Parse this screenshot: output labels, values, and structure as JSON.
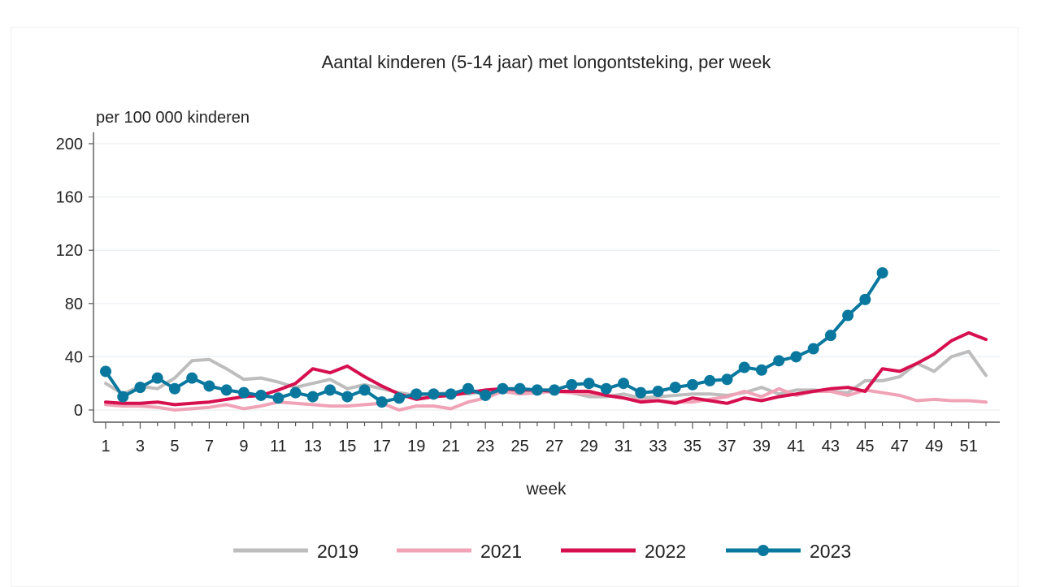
{
  "chart_data": {
    "type": "line",
    "title": "Aantal kinderen (5-14 jaar) met longontsteking, per week",
    "ylabel": "per 100 000 kinderen",
    "xlabel": "week",
    "ylim": [
      0,
      200
    ],
    "yticks": [
      0,
      40,
      80,
      120,
      160,
      200
    ],
    "xlim": [
      1,
      52
    ],
    "xticks": [
      1,
      3,
      5,
      7,
      9,
      11,
      13,
      15,
      17,
      19,
      21,
      23,
      25,
      27,
      29,
      31,
      33,
      35,
      37,
      39,
      41,
      43,
      45,
      47,
      49,
      51
    ],
    "grid": "horizontal",
    "legend_position": "bottom",
    "series": [
      {
        "name": "2019",
        "color": "#bdbdbd",
        "markers": false,
        "x": [
          1,
          2,
          3,
          4,
          5,
          6,
          7,
          8,
          9,
          10,
          11,
          12,
          13,
          14,
          15,
          16,
          17,
          18,
          19,
          20,
          21,
          22,
          23,
          24,
          25,
          26,
          27,
          28,
          29,
          30,
          31,
          32,
          33,
          34,
          35,
          36,
          37,
          38,
          39,
          40,
          41,
          42,
          43,
          44,
          45,
          46,
          47,
          48,
          49,
          50,
          51,
          52
        ],
        "values": [
          20,
          12,
          18,
          16,
          24,
          37,
          38,
          31,
          23,
          24,
          21,
          17,
          20,
          23,
          16,
          19,
          16,
          13,
          11,
          12,
          13,
          12,
          14,
          15,
          14,
          15,
          14,
          13,
          10,
          10,
          12,
          9,
          10,
          11,
          12,
          12,
          11,
          13,
          17,
          12,
          15,
          15,
          14,
          13,
          22,
          22,
          25,
          35,
          29,
          40,
          44,
          26
        ]
      },
      {
        "name": "2021",
        "color": "#f0a3b6",
        "markers": false,
        "x": [
          1,
          2,
          3,
          4,
          5,
          6,
          7,
          8,
          9,
          10,
          11,
          12,
          13,
          14,
          15,
          16,
          17,
          18,
          19,
          20,
          21,
          22,
          23,
          24,
          25,
          26,
          27,
          28,
          29,
          30,
          31,
          32,
          33,
          34,
          35,
          36,
          37,
          38,
          39,
          40,
          41,
          42,
          43,
          44,
          45,
          46,
          47,
          48,
          49,
          50,
          51,
          52
        ],
        "values": [
          4,
          3,
          3,
          2,
          0,
          1,
          2,
          4,
          1,
          3,
          6,
          5,
          4,
          3,
          3,
          4,
          5,
          0,
          3,
          3,
          1,
          6,
          9,
          14,
          12,
          13,
          14,
          13,
          12,
          11,
          9,
          7,
          7,
          6,
          6,
          8,
          10,
          14,
          10,
          16,
          11,
          14,
          14,
          11,
          15,
          13,
          11,
          7,
          8,
          7,
          7,
          6
        ]
      },
      {
        "name": "2022",
        "color": "#d6104f",
        "markers": false,
        "x": [
          1,
          2,
          3,
          4,
          5,
          6,
          7,
          8,
          9,
          10,
          11,
          12,
          13,
          14,
          15,
          16,
          17,
          18,
          19,
          20,
          21,
          22,
          23,
          24,
          25,
          26,
          27,
          28,
          29,
          30,
          31,
          32,
          33,
          34,
          35,
          36,
          37,
          38,
          39,
          40,
          41,
          42,
          43,
          44,
          45,
          46,
          47,
          48,
          49,
          50,
          51,
          52
        ],
        "values": [
          6,
          5,
          5,
          6,
          4,
          5,
          6,
          8,
          10,
          11,
          15,
          20,
          31,
          28,
          33,
          25,
          18,
          12,
          8,
          10,
          11,
          13,
          15,
          16,
          15,
          15,
          14,
          14,
          14,
          11,
          9,
          6,
          7,
          5,
          9,
          7,
          5,
          9,
          7,
          10,
          12,
          14,
          16,
          17,
          14,
          31,
          29,
          35,
          42,
          52,
          58,
          53
        ]
      },
      {
        "name": "2023",
        "color": "#0a789e",
        "markers": true,
        "x": [
          1,
          2,
          3,
          4,
          5,
          6,
          7,
          8,
          9,
          10,
          11,
          12,
          13,
          14,
          15,
          16,
          17,
          18,
          19,
          20,
          21,
          22,
          23,
          24,
          25,
          26,
          27,
          28,
          29,
          30,
          31,
          32,
          33,
          34,
          35,
          36,
          37,
          38,
          39,
          40,
          41,
          42,
          43,
          44,
          45,
          46
        ],
        "values": [
          29,
          10,
          17,
          24,
          16,
          24,
          18,
          15,
          13,
          11,
          9,
          13,
          10,
          15,
          10,
          15,
          6,
          9,
          12,
          12,
          12,
          16,
          11,
          16,
          16,
          15,
          15,
          19,
          20,
          16,
          20,
          13,
          14,
          17,
          19,
          22,
          23,
          32,
          30,
          37,
          40,
          46,
          56,
          71,
          83,
          103
        ]
      }
    ]
  }
}
